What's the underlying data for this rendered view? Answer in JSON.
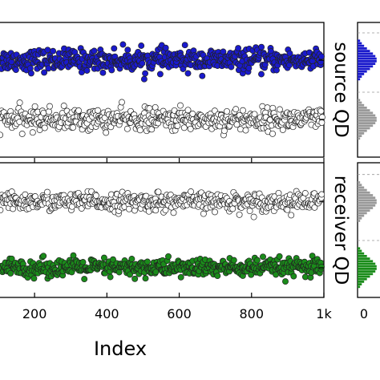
{
  "chart_data": {
    "type": "scatter",
    "xlabel": "Index",
    "xlim": [
      100,
      1000
    ],
    "x_ticks": [
      {
        "value": 200,
        "label": "200"
      },
      {
        "value": 400,
        "label": "400"
      },
      {
        "value": 600,
        "label": "600"
      },
      {
        "value": 800,
        "label": "800"
      },
      {
        "value": 1000,
        "label": "1k"
      }
    ],
    "right_tick_label": "0",
    "panels": [
      {
        "side_label": "source QD",
        "series": [
          {
            "color": "#1a1acc",
            "filled": true,
            "level": 0.72,
            "spread": 0.09
          },
          {
            "color": "#ffffff",
            "filled": false,
            "level": 0.28,
            "spread": 0.09
          }
        ],
        "histogram": [
          {
            "color": "#1a1acc",
            "level": 0.72
          },
          {
            "color": "#999999",
            "level": 0.28
          }
        ]
      },
      {
        "side_label": "receiver QD",
        "series": [
          {
            "color": "#ffffff",
            "filled": false,
            "level": 0.71,
            "spread": 0.075
          },
          {
            "color": "#1a8c1a",
            "filled": true,
            "level": 0.22,
            "spread": 0.075
          }
        ],
        "histogram": [
          {
            "color": "#999999",
            "level": 0.71
          },
          {
            "color": "#1a8c1a",
            "level": 0.22
          }
        ]
      }
    ]
  }
}
